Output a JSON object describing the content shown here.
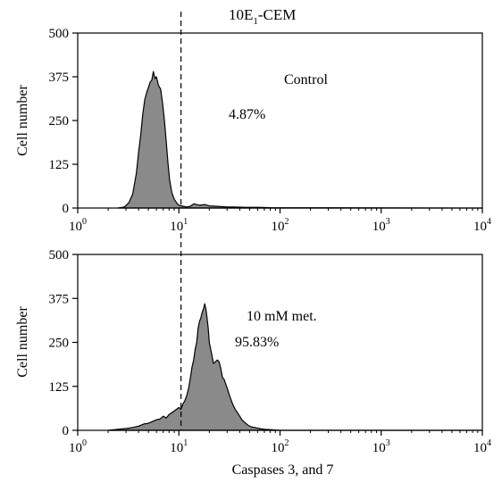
{
  "title": "10E",
  "title_subscript": "1",
  "title_suffix": "-CEM",
  "chart_data": [
    {
      "type": "area",
      "x_scale": "log",
      "xlim": [
        1,
        10000
      ],
      "ylim": [
        0,
        500
      ],
      "ylabel": "Cell number",
      "xlabel": "",
      "y_ticks": [
        0,
        125,
        250,
        375,
        500
      ],
      "x_ticks": [
        {
          "base": "10",
          "exp": "0"
        },
        {
          "base": "10",
          "exp": "1"
        },
        {
          "base": "10",
          "exp": "2"
        },
        {
          "base": "10",
          "exp": "3"
        },
        {
          "base": "10",
          "exp": "4"
        }
      ],
      "gate_x": 10.5,
      "annotations": [
        {
          "key": "label",
          "text": "Control"
        },
        {
          "key": "percent",
          "text": "4.87%"
        }
      ],
      "series": [
        {
          "x": [
            2.5,
            2.9,
            3.2,
            3.5,
            3.8,
            4.0,
            4.2,
            4.4,
            4.6,
            4.8,
            5.0,
            5.2,
            5.4,
            5.6,
            5.8,
            6.0,
            6.3,
            6.6,
            6.9,
            7.2,
            7.5,
            7.8,
            8.1,
            8.5,
            9.0,
            9.5,
            10.0,
            11.0,
            12.0,
            13.0,
            14.0,
            15.0,
            16.0,
            18.0,
            20.0,
            23.0,
            26.0,
            30.0,
            35.0,
            45.0,
            60.0,
            80.0,
            10000.0
          ],
          "y": [
            0,
            3,
            15,
            40,
            100,
            160,
            210,
            270,
            310,
            330,
            345,
            360,
            365,
            390,
            370,
            375,
            350,
            340,
            300,
            250,
            190,
            130,
            80,
            45,
            25,
            15,
            8,
            5,
            3,
            5,
            12,
            10,
            8,
            10,
            6,
            5,
            4,
            3,
            3,
            2,
            2,
            1,
            0
          ]
        }
      ]
    },
    {
      "type": "area",
      "x_scale": "log",
      "xlim": [
        1,
        10000
      ],
      "ylim": [
        0,
        500
      ],
      "ylabel": "Cell number",
      "xlabel": "Caspases 3, and 7",
      "y_ticks": [
        0,
        125,
        250,
        375,
        500
      ],
      "x_ticks": [
        {
          "base": "10",
          "exp": "0"
        },
        {
          "base": "10",
          "exp": "1"
        },
        {
          "base": "10",
          "exp": "2"
        },
        {
          "base": "10",
          "exp": "3"
        },
        {
          "base": "10",
          "exp": "4"
        }
      ],
      "gate_x": 10.5,
      "annotations": [
        {
          "key": "label",
          "text": "10 mM met."
        },
        {
          "key": "percent",
          "text": "95.83%"
        }
      ],
      "series": [
        {
          "x": [
            2.0,
            2.5,
            3.0,
            3.5,
            4.0,
            4.5,
            5.0,
            5.5,
            6.0,
            6.5,
            7.0,
            7.5,
            8.0,
            8.5,
            9.0,
            9.5,
            10.0,
            10.5,
            11.0,
            11.5,
            12.0,
            12.5,
            13.0,
            13.5,
            14.0,
            14.5,
            15.0,
            15.5,
            16.0,
            16.5,
            17.0,
            17.5,
            18.0,
            18.5,
            19.0,
            19.5,
            20.0,
            21.0,
            22.0,
            23.0,
            24.0,
            25.0,
            26.0,
            27.0,
            28.0,
            30.0,
            32.0,
            34.0,
            36.0,
            38.0,
            40.0,
            42.0,
            45.0,
            48.0,
            52.0,
            56.0,
            60.0,
            65.0,
            70.0,
            80.0,
            90.0,
            100.0,
            10000.0
          ],
          "y": [
            0,
            3,
            5,
            8,
            12,
            18,
            20,
            25,
            30,
            32,
            40,
            35,
            45,
            50,
            55,
            60,
            65,
            60,
            75,
            85,
            100,
            120,
            150,
            180,
            200,
            230,
            250,
            290,
            310,
            320,
            335,
            345,
            360,
            345,
            320,
            290,
            250,
            220,
            190,
            195,
            200,
            195,
            175,
            150,
            145,
            120,
            95,
            75,
            60,
            50,
            40,
            30,
            22,
            15,
            10,
            8,
            6,
            4,
            3,
            2,
            1,
            0,
            0
          ]
        }
      ]
    }
  ]
}
